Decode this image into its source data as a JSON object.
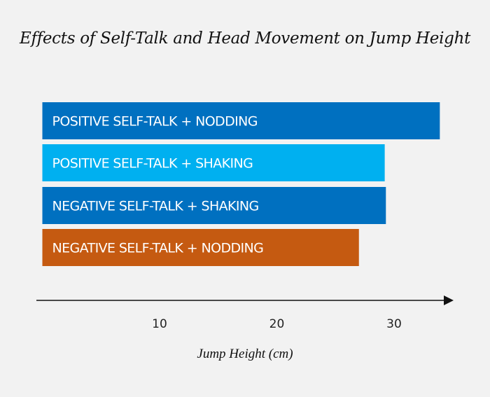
{
  "chart_data": {
    "type": "bar",
    "orientation": "horizontal",
    "title": "Effects of Self-Talk and Head Movement on Jump Height",
    "xlabel": "Jump Height (cm)",
    "ylabel": "",
    "categories": [
      "POSITIVE SELF-TALK + NODDING",
      "POSITIVE SELF-TALK + SHAKING",
      "NEGATIVE SELF-TALK + SHAKING",
      "NEGATIVE SELF-TALK + NODDING"
    ],
    "values": [
      33.9,
      29.2,
      29.3,
      27.0
    ],
    "colors": [
      "#0070c0",
      "#00b0f0",
      "#0070c0",
      "#c55a11"
    ],
    "xticks": [
      10,
      20,
      30
    ],
    "xlim": [
      0,
      35
    ],
    "grid": false,
    "legend": "none",
    "labels_inside_bars": true
  }
}
